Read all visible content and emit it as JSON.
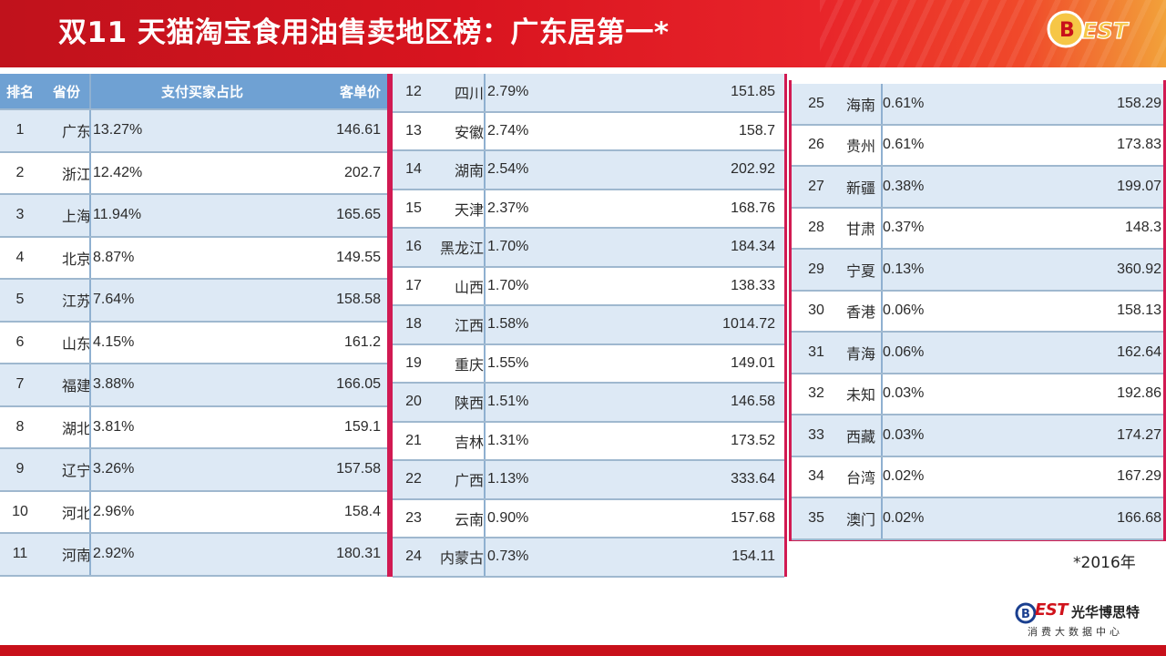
{
  "title": "双11 天猫淘宝食用油售卖地区榜：广东居第一*",
  "header_logo_text": "EST",
  "footnote": "*2016年",
  "brand": {
    "logo_text": "EST",
    "name": "光华博思特",
    "subtitle": "消费大数据中心"
  },
  "colors": {
    "header_red": "#d9141f",
    "table_header_blue": "#6fa1d3",
    "bar_blue": "#4fa3ea",
    "row_alt": "#dde9f5",
    "frame_pink": "#d11a52"
  },
  "chart_data": {
    "type": "table",
    "columns": [
      "排名",
      "省份",
      "支付买家占比",
      "客单价"
    ],
    "rows": [
      {
        "rank": "1",
        "province": "广东",
        "share": "13.27%",
        "share_value": 13.27,
        "price": "146.61"
      },
      {
        "rank": "2",
        "province": "浙江",
        "share": "12.42%",
        "share_value": 12.42,
        "price": "202.7"
      },
      {
        "rank": "3",
        "province": "上海",
        "share": "11.94%",
        "share_value": 11.94,
        "price": "165.65"
      },
      {
        "rank": "4",
        "province": "北京",
        "share": "8.87%",
        "share_value": 8.87,
        "price": "149.55"
      },
      {
        "rank": "5",
        "province": "江苏",
        "share": "7.64%",
        "share_value": 7.64,
        "price": "158.58"
      },
      {
        "rank": "6",
        "province": "山东",
        "share": "4.15%",
        "share_value": 4.15,
        "price": "161.2"
      },
      {
        "rank": "7",
        "province": "福建",
        "share": "3.88%",
        "share_value": 3.88,
        "price": "166.05"
      },
      {
        "rank": "8",
        "province": "湖北",
        "share": "3.81%",
        "share_value": 3.81,
        "price": "159.1"
      },
      {
        "rank": "9",
        "province": "辽宁",
        "share": "3.26%",
        "share_value": 3.26,
        "price": "157.58"
      },
      {
        "rank": "10",
        "province": "河北",
        "share": "2.96%",
        "share_value": 2.96,
        "price": "158.4"
      },
      {
        "rank": "11",
        "province": "河南",
        "share": "2.92%",
        "share_value": 2.92,
        "price": "180.31"
      },
      {
        "rank": "12",
        "province": "四川",
        "share": "2.79%",
        "share_value": 2.79,
        "price": "151.85"
      },
      {
        "rank": "13",
        "province": "安徽",
        "share": "2.74%",
        "share_value": 2.74,
        "price": "158.7"
      },
      {
        "rank": "14",
        "province": "湖南",
        "share": "2.54%",
        "share_value": 2.54,
        "price": "202.92"
      },
      {
        "rank": "15",
        "province": "天津",
        "share": "2.37%",
        "share_value": 2.37,
        "price": "168.76"
      },
      {
        "rank": "16",
        "province": "黑龙江",
        "share": "1.70%",
        "share_value": 1.7,
        "price": "184.34"
      },
      {
        "rank": "17",
        "province": "山西",
        "share": "1.70%",
        "share_value": 1.7,
        "price": "138.33"
      },
      {
        "rank": "18",
        "province": "江西",
        "share": "1.58%",
        "share_value": 1.58,
        "price": "1014.72"
      },
      {
        "rank": "19",
        "province": "重庆",
        "share": "1.55%",
        "share_value": 1.55,
        "price": "149.01"
      },
      {
        "rank": "20",
        "province": "陕西",
        "share": "1.51%",
        "share_value": 1.51,
        "price": "146.58"
      },
      {
        "rank": "21",
        "province": "吉林",
        "share": "1.31%",
        "share_value": 1.31,
        "price": "173.52"
      },
      {
        "rank": "22",
        "province": "广西",
        "share": "1.13%",
        "share_value": 1.13,
        "price": "333.64"
      },
      {
        "rank": "23",
        "province": "云南",
        "share": "0.90%",
        "share_value": 0.9,
        "price": "157.68"
      },
      {
        "rank": "24",
        "province": "内蒙古",
        "share": "0.73%",
        "share_value": 0.73,
        "price": "154.11"
      },
      {
        "rank": "25",
        "province": "海南",
        "share": "0.61%",
        "share_value": 0.61,
        "price": "158.29"
      },
      {
        "rank": "26",
        "province": "贵州",
        "share": "0.61%",
        "share_value": 0.61,
        "price": "173.83"
      },
      {
        "rank": "27",
        "province": "新疆",
        "share": "0.38%",
        "share_value": 0.38,
        "price": "199.07"
      },
      {
        "rank": "28",
        "province": "甘肃",
        "share": "0.37%",
        "share_value": 0.37,
        "price": "148.3"
      },
      {
        "rank": "29",
        "province": "宁夏",
        "share": "0.13%",
        "share_value": 0.13,
        "price": "360.92"
      },
      {
        "rank": "30",
        "province": "香港",
        "share": "0.06%",
        "share_value": 0.06,
        "price": "158.13"
      },
      {
        "rank": "31",
        "province": "青海",
        "share": "0.06%",
        "share_value": 0.06,
        "price": "162.64"
      },
      {
        "rank": "32",
        "province": "未知",
        "share": "0.03%",
        "share_value": 0.03,
        "price": "192.86"
      },
      {
        "rank": "33",
        "province": "西藏",
        "share": "0.03%",
        "share_value": 0.03,
        "price": "174.27"
      },
      {
        "rank": "34",
        "province": "台湾",
        "share": "0.02%",
        "share_value": 0.02,
        "price": "167.29"
      },
      {
        "rank": "35",
        "province": "澳门",
        "share": "0.02%",
        "share_value": 0.02,
        "price": "166.68"
      }
    ]
  }
}
